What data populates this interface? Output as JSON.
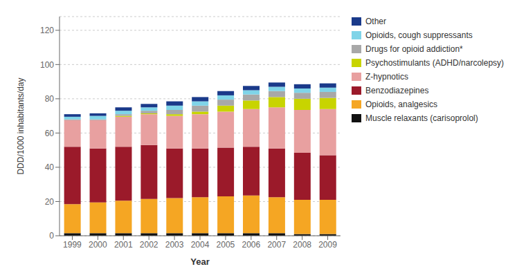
{
  "chart_data": {
    "type": "bar",
    "stacked": true,
    "xlabel": "Year",
    "ylabel": "DDD/1000 inhabitants/day",
    "categories": [
      "1999",
      "2000",
      "2001",
      "2002",
      "2003",
      "2004",
      "2005",
      "2006",
      "2007",
      "2008",
      "2009"
    ],
    "series": [
      {
        "name": "Muscle relaxants (carisoprolol)",
        "color": "#111111",
        "values": [
          1.5,
          1.5,
          1.5,
          1.5,
          1.5,
          1.5,
          1.5,
          1.5,
          1.5,
          1.0,
          1.0
        ]
      },
      {
        "name": "Opioids, analgesics",
        "color": "#f5a623",
        "values": [
          17.0,
          18.0,
          19.0,
          20.0,
          20.5,
          21.0,
          21.5,
          22.0,
          21.0,
          20.0,
          20.0
        ]
      },
      {
        "name": "Benzodiazepines",
        "color": "#9b1a2a",
        "values": [
          33.5,
          31.5,
          31.5,
          31.5,
          29.0,
          28.5,
          28.5,
          28.5,
          28.5,
          27.5,
          26.0
        ]
      },
      {
        "name": "Z-hypnotics",
        "color": "#e8a0a0",
        "values": [
          15.5,
          16.5,
          17.5,
          18.0,
          19.0,
          20.0,
          21.0,
          22.0,
          24.0,
          25.0,
          27.0
        ]
      },
      {
        "name": "Psychostimulants (ADHD/narcolepsy)",
        "color": "#c8d400",
        "values": [
          0.0,
          0.0,
          0.5,
          0.5,
          1.0,
          1.5,
          3.5,
          5.0,
          6.0,
          6.5,
          6.5
        ]
      },
      {
        "name": "Drugs for opioid addiction*",
        "color": "#a8a8a8",
        "values": [
          0.5,
          0.5,
          1.0,
          1.5,
          2.5,
          3.5,
          3.5,
          3.5,
          3.5,
          3.5,
          3.5
        ]
      },
      {
        "name": "Opioids, cough suppressants",
        "color": "#7fd4e8",
        "values": [
          1.5,
          2.0,
          2.0,
          2.0,
          2.5,
          2.5,
          2.5,
          2.5,
          2.5,
          2.5,
          2.5
        ]
      },
      {
        "name": "Other",
        "color": "#1a3a8a",
        "values": [
          1.5,
          1.5,
          2.0,
          2.0,
          2.5,
          2.5,
          2.5,
          2.5,
          2.5,
          2.5,
          2.5
        ]
      }
    ],
    "ylim": [
      0,
      128
    ],
    "yticks": [
      0,
      20,
      40,
      60,
      80,
      100,
      120
    ],
    "grid": true,
    "legend": "right"
  }
}
